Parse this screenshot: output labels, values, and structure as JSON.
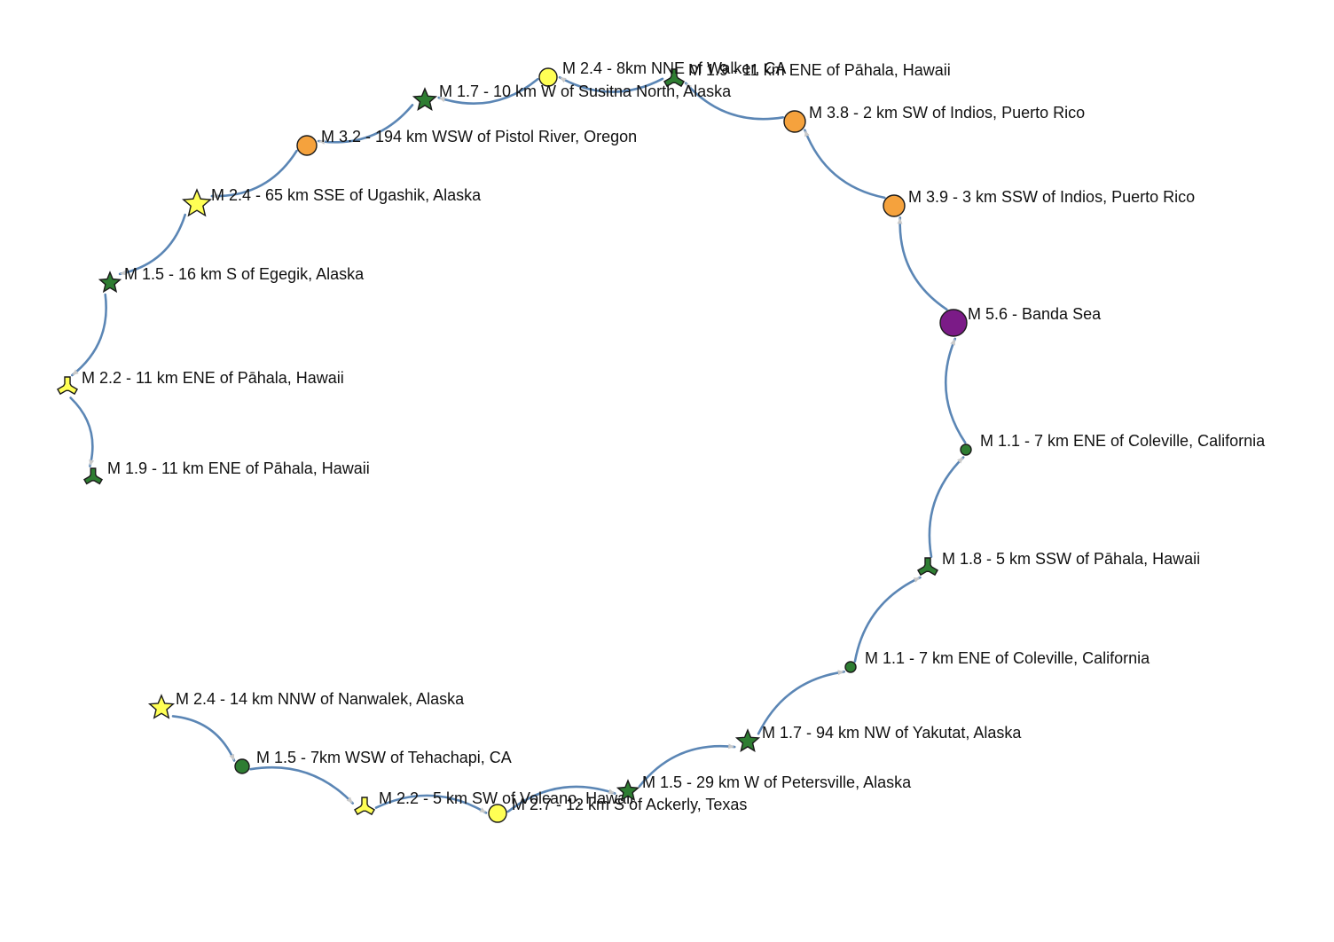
{
  "colors": {
    "edge": "#5b86b5",
    "arrow": "#c9c9c9",
    "mag_1": "#2e7d32",
    "mag_2": "#ffff55",
    "mag_3": "#f5a23d",
    "mag_5": "#7b1b87"
  },
  "nodes": [
    {
      "id": "n0",
      "label": "M 2.4 - 14 km NNW of Nanwalek, Alaska",
      "shape": "star",
      "color": "#ffff55"
    },
    {
      "id": "n1",
      "label": "M 1.5 - 7km WSW of Tehachapi, CA",
      "shape": "circle",
      "color": "#2e7d32"
    },
    {
      "id": "n2",
      "label": "M 2.2 - 5 km SW of Volcano, Hawaii",
      "shape": "tri-lobe",
      "color": "#ffff55"
    },
    {
      "id": "n3",
      "label": "M 2.7 - 12 km S of Ackerly, Texas",
      "shape": "circle",
      "color": "#ffff55"
    },
    {
      "id": "n4",
      "label": "M 1.5 - 29 km W of Petersville, Alaska",
      "shape": "star",
      "color": "#2e7d32"
    },
    {
      "id": "n5",
      "label": "M 1.7 - 94 km NW of Yakutat, Alaska",
      "shape": "star",
      "color": "#2e7d32"
    },
    {
      "id": "n6",
      "label": "M 1.1 - 7 km ENE of Coleville, California",
      "shape": "circle",
      "color": "#2e7d32"
    },
    {
      "id": "n7",
      "label": "M 1.8 - 5 km SSW of Pāhala, Hawaii",
      "shape": "tri-lobe",
      "color": "#2e7d32"
    },
    {
      "id": "n8",
      "label": "M 1.1 - 7 km ENE of Coleville, California",
      "shape": "circle",
      "color": "#2e7d32"
    },
    {
      "id": "n9",
      "label": "M 5.6 - Banda Sea",
      "shape": "circle",
      "color": "#7b1b87"
    },
    {
      "id": "n10",
      "label": "M 3.9 - 3 km SSW of Indios, Puerto Rico",
      "shape": "circle",
      "color": "#f5a23d"
    },
    {
      "id": "n11",
      "label": "M 3.8 - 2 km SW of Indios, Puerto Rico",
      "shape": "circle",
      "color": "#f5a23d"
    },
    {
      "id": "n12",
      "label": "M 1.9 - 11 km ENE of Pāhala, Hawaii",
      "shape": "tri-lobe",
      "color": "#2e7d32"
    },
    {
      "id": "n13",
      "label": "M 2.4 - 8km NNE of Walker, CA",
      "shape": "circle",
      "color": "#ffff55"
    },
    {
      "id": "n14",
      "label": "M 1.7 - 10 km W of Susitna North, Alaska",
      "shape": "star",
      "color": "#2e7d32"
    },
    {
      "id": "n15",
      "label": "M 3.2 - 194 km WSW of Pistol River, Oregon",
      "shape": "circle",
      "color": "#f5a23d"
    },
    {
      "id": "n16",
      "label": "M 2.4 - 65 km SSE of Ugashik, Alaska",
      "shape": "star",
      "color": "#ffff55"
    },
    {
      "id": "n17",
      "label": "M 1.5 - 16 km S of Egegik, Alaska",
      "shape": "star",
      "color": "#2e7d32"
    },
    {
      "id": "n18",
      "label": "M 2.2 - 11 km ENE of Pāhala, Hawaii",
      "shape": "tri-lobe",
      "color": "#ffff55"
    },
    {
      "id": "n19",
      "label": "M 1.9 - 11 km ENE of Pāhala, Hawaii",
      "shape": "tri-lobe",
      "color": "#2e7d32"
    }
  ],
  "edges": [
    {
      "from": "n0",
      "to": "n1"
    },
    {
      "from": "n1",
      "to": "n2"
    },
    {
      "from": "n2",
      "to": "n3"
    },
    {
      "from": "n3",
      "to": "n4"
    },
    {
      "from": "n4",
      "to": "n5"
    },
    {
      "from": "n5",
      "to": "n6"
    },
    {
      "from": "n6",
      "to": "n7"
    },
    {
      "from": "n7",
      "to": "n8"
    },
    {
      "from": "n8",
      "to": "n9"
    },
    {
      "from": "n9",
      "to": "n10"
    },
    {
      "from": "n10",
      "to": "n11"
    },
    {
      "from": "n11",
      "to": "n12"
    },
    {
      "from": "n12",
      "to": "n13"
    },
    {
      "from": "n13",
      "to": "n14"
    },
    {
      "from": "n14",
      "to": "n15"
    },
    {
      "from": "n15",
      "to": "n16"
    },
    {
      "from": "n16",
      "to": "n17"
    },
    {
      "from": "n17",
      "to": "n18"
    },
    {
      "from": "n18",
      "to": "n19"
    }
  ]
}
